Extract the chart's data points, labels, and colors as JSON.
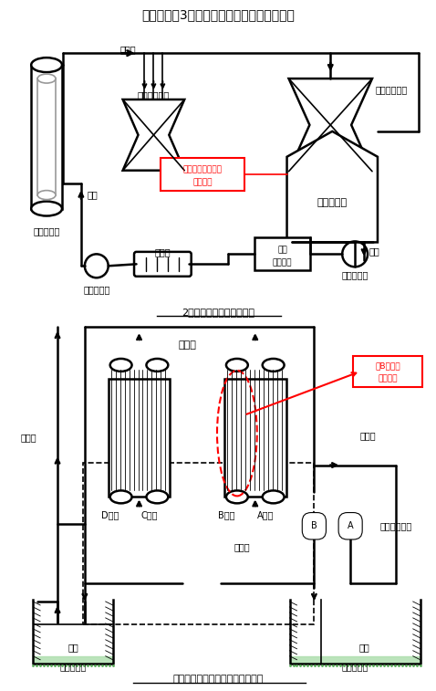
{
  "title": "伊方発電所3号機　復水器まわり系統概略図",
  "subtitle1": "2次系系統概略図（純水）",
  "subtitle2": "復水器まわり系統概略図（海水）",
  "bg_color": "#ffffff",
  "label_steam_gen": "蒸気発生器",
  "label_main_steam": "主蒸気",
  "label_hp_turbine": "高圧タービン",
  "label_lp_turbine": "低圧タービン",
  "label_condenser_top": "復　水　器",
  "label_condensate": "復水",
  "label_feed_water": "給水",
  "label_degasifier": "脱気器",
  "label_feed_pump": "給水ポンプ",
  "label_condensate_pump": "復水ポンプ",
  "label_condensate_desalt_l1": "復水脱塩",
  "label_condensate_desalt_l2": "装置",
  "label_conductivity_l1": "導電率計",
  "label_conductivity_l2": "（各水室に設置）",
  "label_discharge_pipe": "放水管",
  "label_intake_pipe": "取水管",
  "label_intake_pipe2": "取水管",
  "label_circulation_pump": "循環水ポンプ",
  "label_seawater": "海水",
  "label_seawater2": "海水",
  "label_discharge_pit": "放水ピット",
  "label_intake_pit": "取水ピット",
  "label_fukusuiki": "復水器",
  "label_D": "D水室",
  "label_C": "C水室",
  "label_B": "B水室",
  "label_A": "A水室",
  "label_spot_l1": "当該箇所",
  "label_spot_l2": "（B水室）"
}
